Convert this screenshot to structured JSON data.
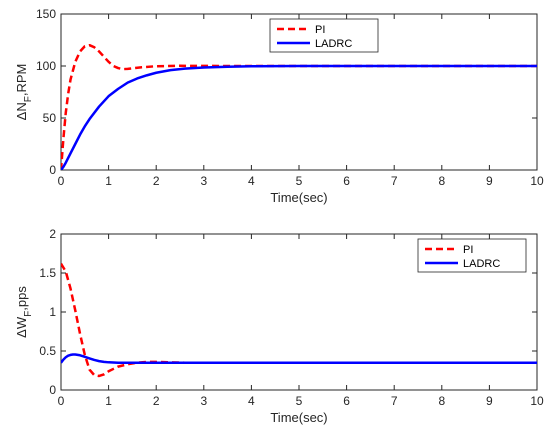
{
  "chart_data": [
    {
      "type": "line",
      "ylabel_base": "ΔN",
      "ylabel_sub": "F",
      "ylabel_rest": ",RPM",
      "xlabel": "Time(sec)",
      "xlim": [
        0,
        10
      ],
      "ylim": [
        0,
        150
      ],
      "xticks": [
        0,
        1,
        2,
        3,
        4,
        5,
        6,
        7,
        8,
        9,
        10
      ],
      "yticks": [
        0,
        50,
        100,
        150
      ],
      "legend_position": "top-right",
      "grid": false,
      "series": [
        {
          "name": "PI",
          "color": "#ff0000",
          "style": "dashed",
          "x": [
            0,
            0.05,
            0.1,
            0.15,
            0.2,
            0.3,
            0.4,
            0.5,
            0.6,
            0.7,
            0.8,
            0.9,
            1.0,
            1.1,
            1.2,
            1.3,
            1.4,
            1.5,
            1.7,
            2.0,
            2.5,
            3.0,
            3.5,
            4.0,
            5.0,
            6.0,
            7.0,
            8.0,
            9.0,
            10.0
          ],
          "y": [
            0,
            30,
            55,
            73,
            87,
            104,
            114,
            119,
            120,
            118,
            114,
            109,
            104,
            100,
            98,
            97,
            97.2,
            97.8,
            98.8,
            99.8,
            100.2,
            100.1,
            100,
            100,
            100,
            100,
            100,
            100,
            100,
            100
          ]
        },
        {
          "name": "LADRC",
          "color": "#0000ff",
          "style": "solid",
          "x": [
            0,
            0.05,
            0.1,
            0.2,
            0.3,
            0.4,
            0.5,
            0.6,
            0.8,
            1.0,
            1.2,
            1.4,
            1.6,
            1.8,
            2.0,
            2.3,
            2.6,
            3.0,
            3.5,
            4.0,
            4.5,
            5.0,
            6.0,
            7.0,
            8.0,
            9.0,
            10.0
          ],
          "y": [
            0,
            3,
            7,
            16,
            25,
            34,
            42,
            49,
            61,
            71,
            78,
            84,
            88,
            91,
            93.5,
            96,
            97.5,
            98.6,
            99.3,
            99.7,
            99.9,
            100,
            100,
            100,
            100,
            100,
            100
          ]
        }
      ]
    },
    {
      "type": "line",
      "ylabel_base": "ΔW",
      "ylabel_sub": "F",
      "ylabel_rest": ",pps",
      "xlabel": "Time(sec)",
      "xlim": [
        0,
        10
      ],
      "ylim": [
        0,
        2
      ],
      "xticks": [
        0,
        1,
        2,
        3,
        4,
        5,
        6,
        7,
        8,
        9,
        10
      ],
      "yticks": [
        0,
        0.5,
        1,
        1.5,
        2
      ],
      "ytick_labels": [
        "0",
        "0.5",
        "1",
        "1.5",
        "2"
      ],
      "legend_position": "top-right",
      "grid": false,
      "series": [
        {
          "name": "PI",
          "color": "#ff0000",
          "style": "dashed",
          "x": [
            0,
            0.1,
            0.2,
            0.3,
            0.4,
            0.5,
            0.6,
            0.7,
            0.8,
            0.9,
            1.0,
            1.1,
            1.2,
            1.4,
            1.6,
            1.8,
            2.0,
            2.3,
            2.6,
            3.0,
            3.5,
            4.0,
            5.0,
            6.0,
            7.0,
            8.0,
            9.0,
            10.0
          ],
          "y": [
            1.62,
            1.52,
            1.3,
            1.02,
            0.72,
            0.45,
            0.26,
            0.19,
            0.18,
            0.2,
            0.24,
            0.27,
            0.3,
            0.33,
            0.35,
            0.36,
            0.36,
            0.355,
            0.35,
            0.35,
            0.35,
            0.35,
            0.35,
            0.35,
            0.35,
            0.35,
            0.35,
            0.35
          ]
        },
        {
          "name": "LADRC",
          "color": "#0000ff",
          "style": "solid",
          "x": [
            0,
            0.05,
            0.1,
            0.15,
            0.2,
            0.25,
            0.3,
            0.4,
            0.5,
            0.6,
            0.7,
            0.8,
            0.9,
            1.0,
            1.2,
            1.5,
            2.0,
            3.0,
            4.0,
            5.0,
            6.0,
            7.0,
            8.0,
            9.0,
            10.0
          ],
          "y": [
            0.35,
            0.39,
            0.42,
            0.44,
            0.45,
            0.455,
            0.455,
            0.445,
            0.425,
            0.405,
            0.385,
            0.37,
            0.36,
            0.355,
            0.35,
            0.35,
            0.35,
            0.35,
            0.35,
            0.35,
            0.35,
            0.35,
            0.35,
            0.35,
            0.35
          ]
        }
      ]
    }
  ]
}
